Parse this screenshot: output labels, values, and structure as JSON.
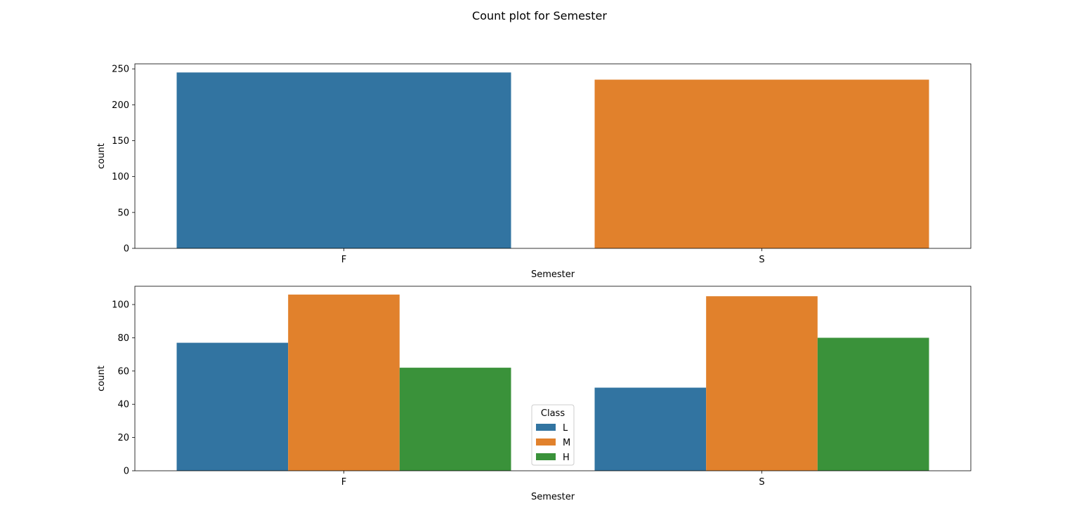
{
  "figure": {
    "suptitle": "Count plot for Semester"
  },
  "chart_data": [
    {
      "type": "bar",
      "categories": [
        "F",
        "S"
      ],
      "values": [
        245,
        235
      ],
      "colors": [
        "#3274a1",
        "#e1812c"
      ],
      "xlabel": "Semester",
      "ylabel": "count",
      "ylim": [
        0,
        257
      ],
      "yticks": [
        0,
        50,
        100,
        150,
        200,
        250
      ],
      "grid": false
    },
    {
      "type": "bar",
      "categories": [
        "F",
        "S"
      ],
      "series": [
        {
          "name": "L",
          "values": [
            77,
            50
          ],
          "color": "#3274a1"
        },
        {
          "name": "M",
          "values": [
            106,
            105
          ],
          "color": "#e1812c"
        },
        {
          "name": "H",
          "values": [
            62,
            80
          ],
          "color": "#3a923a"
        }
      ],
      "xlabel": "Semester",
      "ylabel": "count",
      "ylim": [
        0,
        111
      ],
      "yticks": [
        0,
        20,
        40,
        60,
        80,
        100
      ],
      "legend": {
        "title": "Class",
        "placement": "lower-center"
      },
      "grid": false
    }
  ]
}
